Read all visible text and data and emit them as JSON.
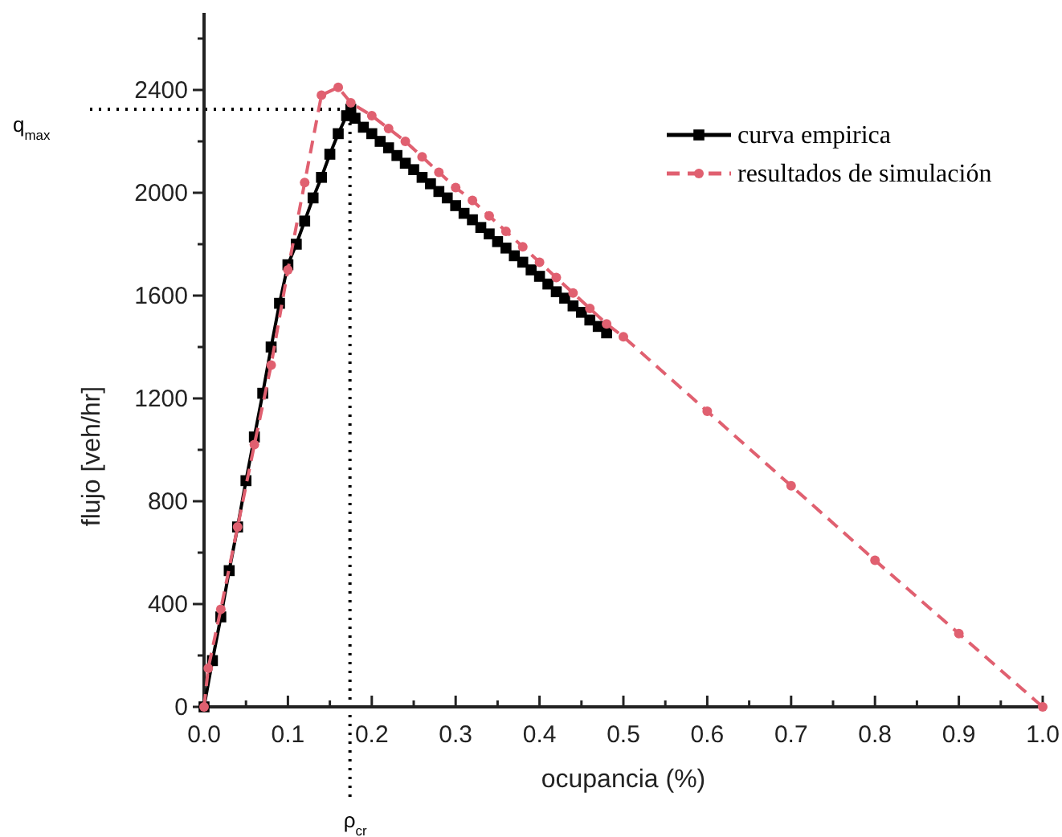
{
  "chart_data": {
    "type": "line",
    "xlabel": "ocupancia (%)",
    "ylabel": "flujo [veh/hr]",
    "xlim": [
      0,
      1.0
    ],
    "ylim": [
      0,
      2700
    ],
    "xticks": [
      {
        "value": 0,
        "label": "0.0"
      },
      {
        "value": 0.05,
        "label": null
      },
      0.1,
      {
        "value": 0.15,
        "label": null
      },
      0.2,
      {
        "value": 0.25,
        "label": null
      },
      0.3,
      {
        "value": 0.35,
        "label": null
      },
      0.4,
      {
        "value": 0.45,
        "label": null
      },
      0.5,
      {
        "value": 0.55,
        "label": null
      },
      0.6,
      {
        "value": 0.65,
        "label": null
      },
      0.7,
      {
        "value": 0.75,
        "label": null
      },
      0.8,
      {
        "value": 0.85,
        "label": null
      },
      0.9,
      {
        "value": 0.95,
        "label": null
      },
      {
        "value": 1.0,
        "label": "1.0"
      }
    ],
    "yticks": [
      0,
      {
        "value": 200,
        "label": null
      },
      400,
      {
        "value": 600,
        "label": null
      },
      800,
      {
        "value": 1000,
        "label": null
      },
      1200,
      {
        "value": 1400,
        "label": null
      },
      1600,
      {
        "value": 1800,
        "label": null
      },
      2000,
      {
        "value": 2200,
        "label": null
      },
      2400,
      {
        "value": 2600,
        "label": null
      }
    ],
    "grid": false,
    "legend": "top right",
    "ref_lines": [
      {
        "axis": "y",
        "value": 2325,
        "label": "q$_{max}$",
        "line_style": "dotted",
        "color": "#000000"
      },
      {
        "axis": "x",
        "value": 0.174,
        "label": "ρ$_{cr}$",
        "line_style": "dotted",
        "color": "#000000"
      }
    ],
    "series": [
      {
        "name": "curva empirica",
        "color": "#000000",
        "marker": "square",
        "line_style": "solid",
        "x": [
          0,
          0.01,
          0.02,
          0.03,
          0.04,
          0.05,
          0.06,
          0.07,
          0.08,
          0.09,
          0.1,
          0.11,
          0.12,
          0.13,
          0.14,
          0.15,
          0.16,
          0.17,
          0.175,
          0.18,
          0.19,
          0.2,
          0.21,
          0.22,
          0.23,
          0.24,
          0.25,
          0.26,
          0.27,
          0.28,
          0.29,
          0.3,
          0.31,
          0.32,
          0.33,
          0.34,
          0.35,
          0.36,
          0.37,
          0.38,
          0.39,
          0.4,
          0.41,
          0.42,
          0.43,
          0.44,
          0.45,
          0.46,
          0.47,
          0.48
        ],
        "values": [
          0,
          180,
          350,
          530,
          700,
          880,
          1050,
          1220,
          1400,
          1570,
          1720,
          1800,
          1890,
          1980,
          2060,
          2150,
          2230,
          2300,
          2325,
          2290,
          2255,
          2230,
          2200,
          2175,
          2145,
          2115,
          2090,
          2060,
          2035,
          2005,
          1980,
          1950,
          1920,
          1895,
          1865,
          1840,
          1810,
          1785,
          1755,
          1730,
          1700,
          1675,
          1645,
          1615,
          1590,
          1560,
          1535,
          1505,
          1480,
          1455
        ]
      },
      {
        "name": "resultados de simulación",
        "color": "#e06070",
        "marker": "circle",
        "line_style": "dashed",
        "x": [
          0,
          0.005,
          0.02,
          0.04,
          0.06,
          0.08,
          0.1,
          0.12,
          0.14,
          0.16,
          0.175,
          0.2,
          0.22,
          0.24,
          0.26,
          0.28,
          0.3,
          0.32,
          0.34,
          0.36,
          0.38,
          0.4,
          0.42,
          0.44,
          0.46,
          0.48,
          0.5,
          0.6,
          0.7,
          0.8,
          0.9,
          1.0
        ],
        "values": [
          0,
          150,
          380,
          700,
          1020,
          1330,
          1700,
          2040,
          2380,
          2410,
          2350,
          2300,
          2250,
          2200,
          2140,
          2080,
          2020,
          1970,
          1910,
          1850,
          1790,
          1730,
          1670,
          1610,
          1550,
          1490,
          1440,
          1150,
          860,
          570,
          285,
          0
        ]
      }
    ]
  }
}
